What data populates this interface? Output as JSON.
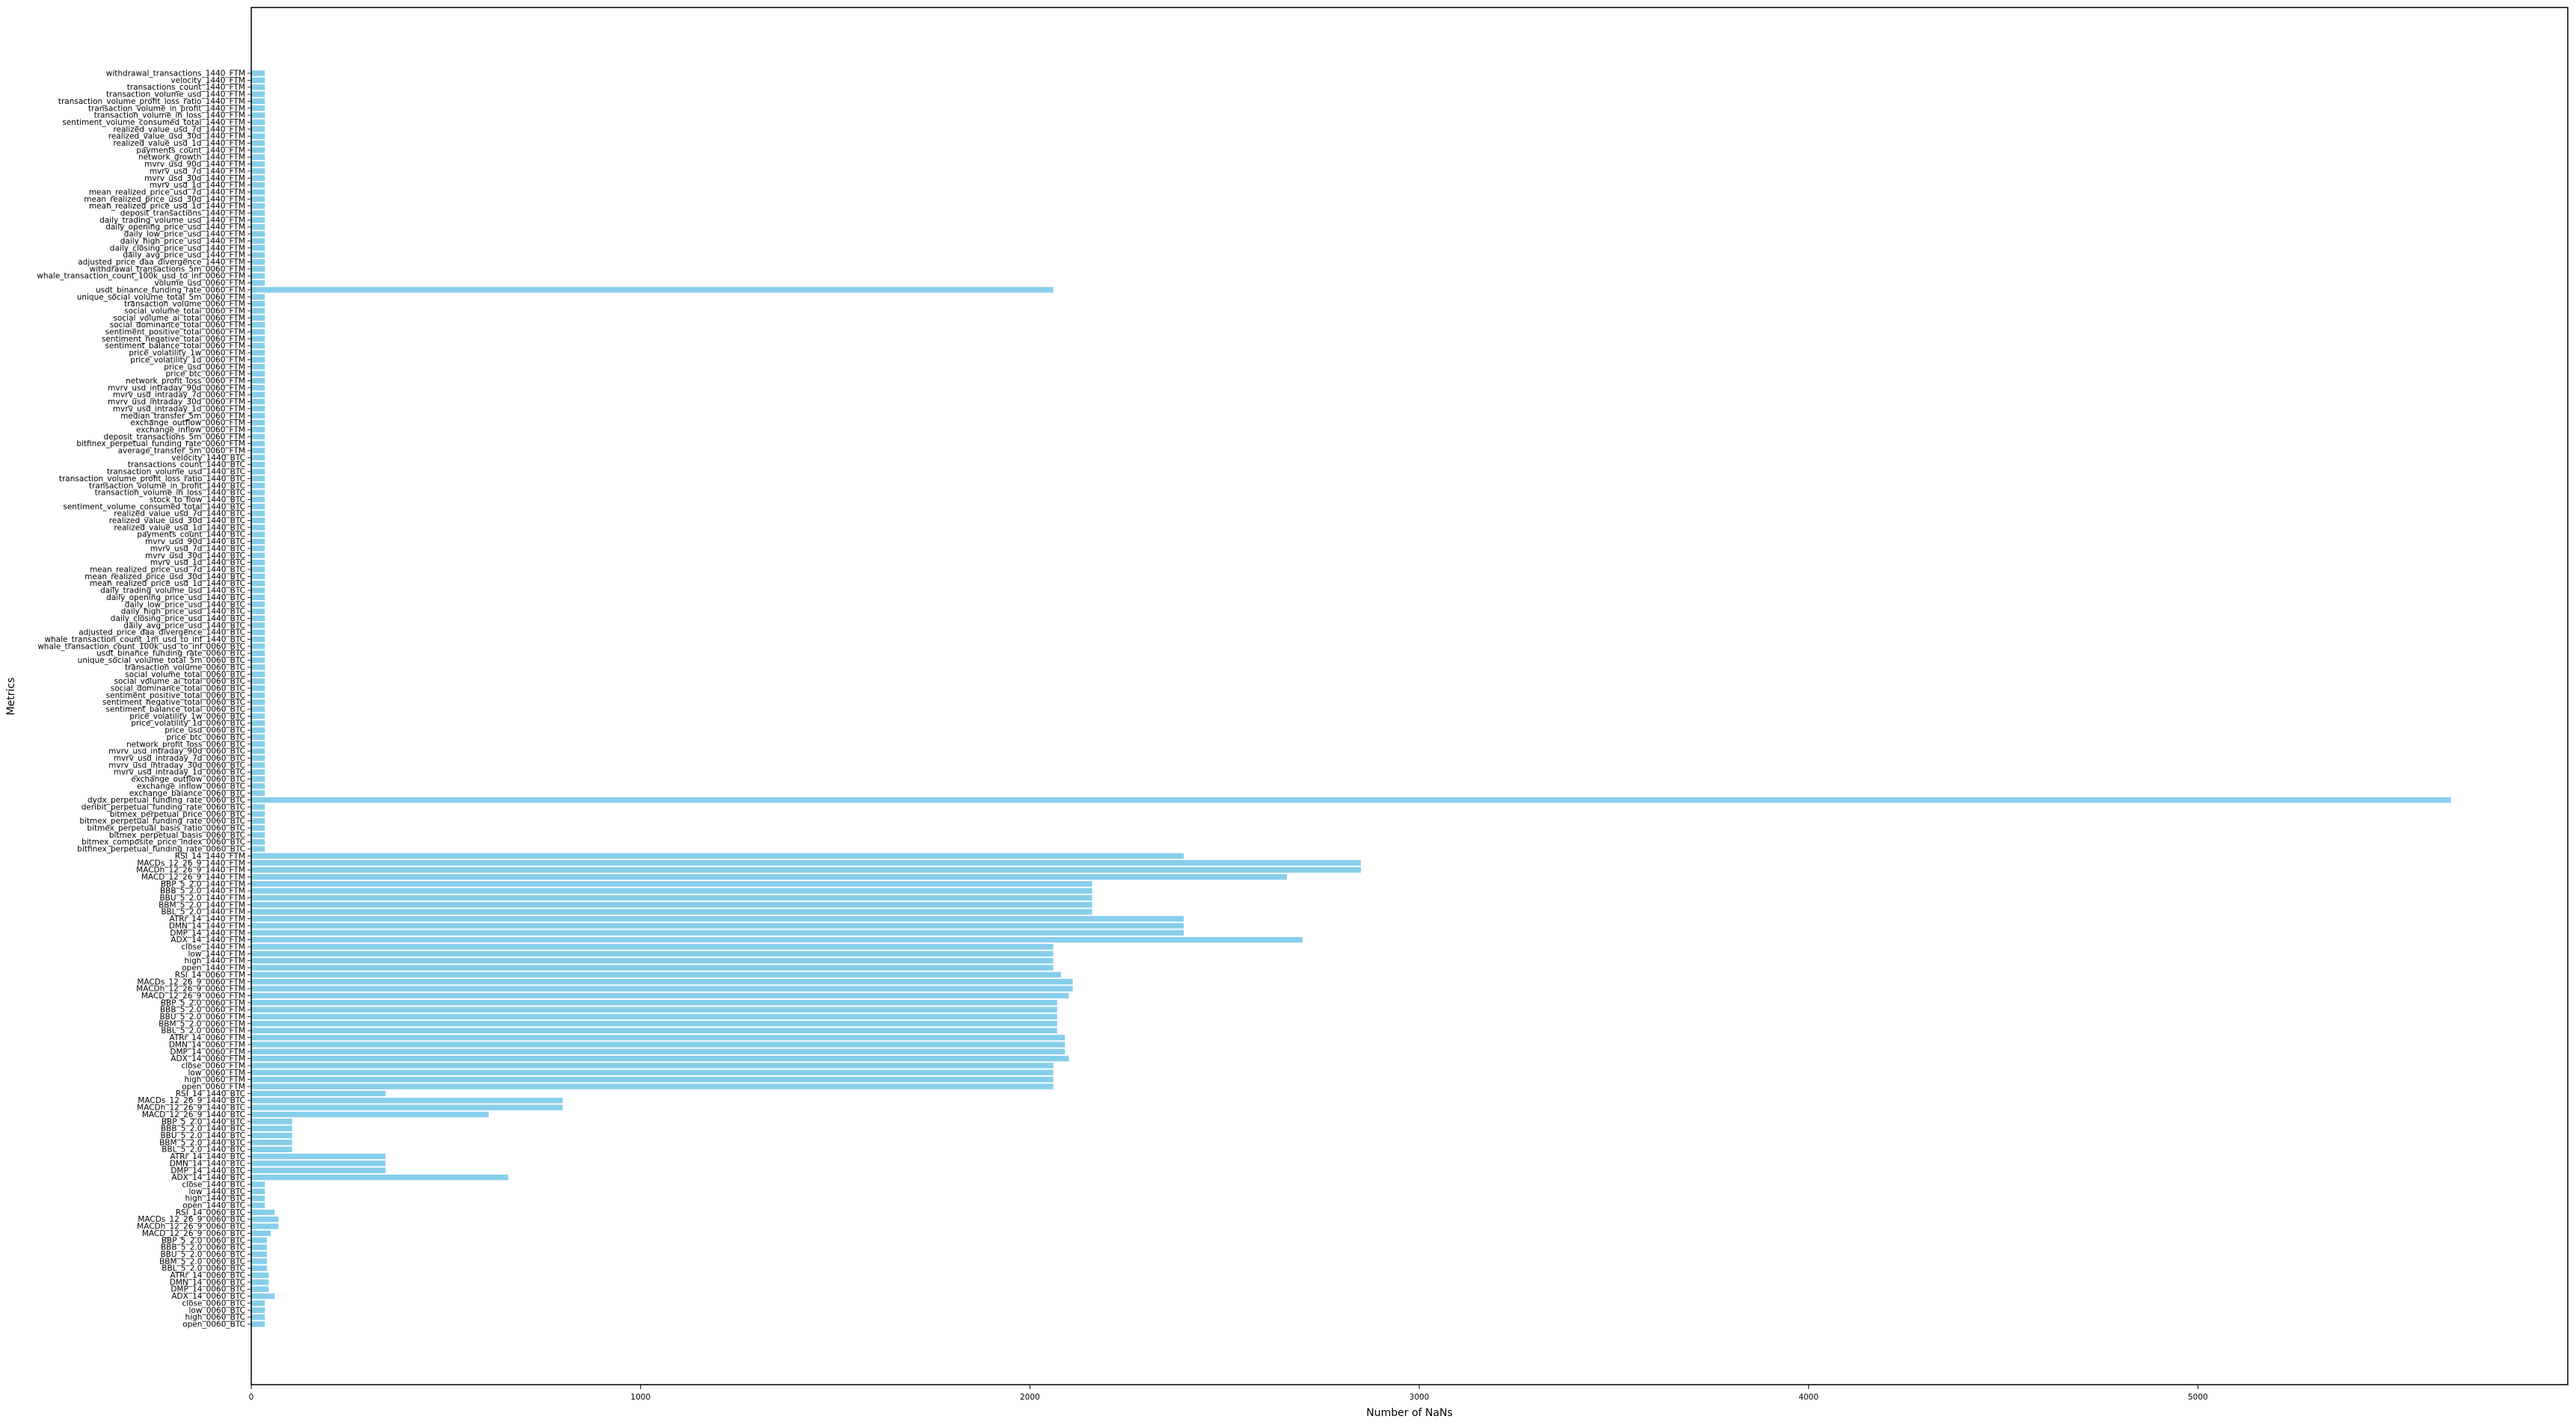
{
  "chart_data": {
    "type": "bar",
    "orientation": "horizontal",
    "xlabel": "Number of NaNs",
    "ylabel": "Metrics",
    "xlim": [
      0,
      5950
    ],
    "xticks": [
      0,
      1000,
      2000,
      3000,
      4000,
      5000
    ],
    "color": "#87CEEB",
    "grid": false,
    "categories": [
      "open_0060_BTC",
      "high_0060_BTC",
      "low_0060_BTC",
      "close_0060_BTC",
      "ADX_14_0060_BTC",
      "DMP_14_0060_BTC",
      "DMN_14_0060_BTC",
      "ATRr_14_0060_BTC",
      "BBL_5_2.0_0060_BTC",
      "BBM_5_2.0_0060_BTC",
      "BBU_5_2.0_0060_BTC",
      "BBB_5_2.0_0060_BTC",
      "BBP_5_2.0_0060_BTC",
      "MACD_12_26_9_0060_BTC",
      "MACDh_12_26_9_0060_BTC",
      "MACDs_12_26_9_0060_BTC",
      "RSI_14_0060_BTC",
      "open_1440_BTC",
      "high_1440_BTC",
      "low_1440_BTC",
      "close_1440_BTC",
      "ADX_14_1440_BTC",
      "DMP_14_1440_BTC",
      "DMN_14_1440_BTC",
      "ATRr_14_1440_BTC",
      "BBL_5_2.0_1440_BTC",
      "BBM_5_2.0_1440_BTC",
      "BBU_5_2.0_1440_BTC",
      "BBB_5_2.0_1440_BTC",
      "BBP_5_2.0_1440_BTC",
      "MACD_12_26_9_1440_BTC",
      "MACDh_12_26_9_1440_BTC",
      "MACDs_12_26_9_1440_BTC",
      "RSI_14_1440_BTC",
      "open_0060_FTM",
      "high_0060_FTM",
      "low_0060_FTM",
      "close_0060_FTM",
      "ADX_14_0060_FTM",
      "DMP_14_0060_FTM",
      "DMN_14_0060_FTM",
      "ATRr_14_0060_FTM",
      "BBL_5_2.0_0060_FTM",
      "BBM_5_2.0_0060_FTM",
      "BBU_5_2.0_0060_FTM",
      "BBB_5_2.0_0060_FTM",
      "BBP_5_2.0_0060_FTM",
      "MACD_12_26_9_0060_FTM",
      "MACDh_12_26_9_0060_FTM",
      "MACDs_12_26_9_0060_FTM",
      "RSI_14_0060_FTM",
      "open_1440_FTM",
      "high_1440_FTM",
      "low_1440_FTM",
      "close_1440_FTM",
      "ADX_14_1440_FTM",
      "DMP_14_1440_FTM",
      "DMN_14_1440_FTM",
      "ATRr_14_1440_FTM",
      "BBL_5_2.0_1440_FTM",
      "BBM_5_2.0_1440_FTM",
      "BBU_5_2.0_1440_FTM",
      "BBB_5_2.0_1440_FTM",
      "BBP_5_2.0_1440_FTM",
      "MACD_12_26_9_1440_FTM",
      "MACDh_12_26_9_1440_FTM",
      "MACDs_12_26_9_1440_FTM",
      "RSI_14_1440_FTM",
      "bitfinex_perpetual_funding_rate_0060_BTC",
      "bitmex_composite_price_index_0060_BTC",
      "bitmex_perpetual_basis_0060_BTC",
      "bitmex_perpetual_basis_ratio_0060_BTC",
      "bitmex_perpetual_funding_rate_0060_BTC",
      "bitmex_perpetual_price_0060_BTC",
      "deribit_perpetual_funding_rate_0060_BTC",
      "dydx_perpetual_funding_rate_0060_BTC",
      "exchange_balance_0060_BTC",
      "exchange_inflow_0060_BTC",
      "exchange_outflow_0060_BTC",
      "mvrv_usd_intraday_1d_0060_BTC",
      "mvrv_usd_intraday_30d_0060_BTC",
      "mvrv_usd_intraday_7d_0060_BTC",
      "mvrv_usd_intraday_90d_0060_BTC",
      "network_profit_loss_0060_BTC",
      "price_btc_0060_BTC",
      "price_usd_0060_BTC",
      "price_volatility_1d_0060_BTC",
      "price_volatility_1w_0060_BTC",
      "sentiment_balance_total_0060_BTC",
      "sentiment_negative_total_0060_BTC",
      "sentiment_positive_total_0060_BTC",
      "social_dominance_total_0060_BTC",
      "social_volume_ai_total_0060_BTC",
      "social_volume_total_0060_BTC",
      "transaction_volume_0060_BTC",
      "unique_social_volume_total_5m_0060_BTC",
      "usdt_binance_funding_rate_0060_BTC",
      "whale_transaction_count_100k_usd_to_inf_0060_BTC",
      "whale_transaction_count_1m_usd_to_inf_1440_BTC",
      "adjusted_price_daa_divergence_1440_BTC",
      "daily_avg_price_usd_1440_BTC",
      "daily_closing_price_usd_1440_BTC",
      "daily_high_price_usd_1440_BTC",
      "daily_low_price_usd_1440_BTC",
      "daily_opening_price_usd_1440_BTC",
      "daily_trading_volume_usd_1440_BTC",
      "mean_realized_price_usd_1d_1440_BTC",
      "mean_realized_price_usd_30d_1440_BTC",
      "mean_realized_price_usd_7d_1440_BTC",
      "mvrv_usd_1d_1440_BTC",
      "mvrv_usd_30d_1440_BTC",
      "mvrv_usd_7d_1440_BTC",
      "mvrv_usd_90d_1440_BTC",
      "payments_count_1440_BTC",
      "realized_value_usd_1d_1440_BTC",
      "realized_value_usd_30d_1440_BTC",
      "realized_value_usd_7d_1440_BTC",
      "sentiment_volume_consumed_total_1440_BTC",
      "stock_to_flow_1440_BTC",
      "transaction_volume_in_loss_1440_BTC",
      "transaction_volume_in_profit_1440_BTC",
      "transaction_volume_profit_loss_ratio_1440_BTC",
      "transaction_volume_usd_1440_BTC",
      "transactions_count_1440_BTC",
      "velocity_1440_BTC",
      "average_transfer_5m_0060_FTM",
      "bitfinex_perpetual_funding_rate_0060_FTM",
      "deposit_transactions_5m_0060_FTM",
      "exchange_inflow_0060_FTM",
      "exchange_outflow_0060_FTM",
      "median_transfer_5m_0060_FTM",
      "mvrv_usd_intraday_1d_0060_FTM",
      "mvrv_usd_intraday_30d_0060_FTM",
      "mvrv_usd_intraday_7d_0060_FTM",
      "mvrv_usd_intraday_90d_0060_FTM",
      "network_profit_loss_0060_FTM",
      "price_btc_0060_FTM",
      "price_usd_0060_FTM",
      "price_volatility_1d_0060_FTM",
      "price_volatility_1w_0060_FTM",
      "sentiment_balance_total_0060_FTM",
      "sentiment_negative_total_0060_FTM",
      "sentiment_positive_total_0060_FTM",
      "social_dominance_total_0060_FTM",
      "social_volume_ai_total_0060_FTM",
      "social_volume_total_0060_FTM",
      "transaction_volume_0060_FTM",
      "unique_social_volume_total_5m_0060_FTM",
      "usdt_binance_funding_rate_0060_FTM",
      "volume_usd_0060_FTM",
      "whale_transaction_count_100k_usd_to_inf_0060_FTM",
      "withdrawal_transactions_5m_0060_FTM",
      "adjusted_price_daa_divergence_1440_FTM",
      "daily_avg_price_usd_1440_FTM",
      "daily_closing_price_usd_1440_FTM",
      "daily_high_price_usd_1440_FTM",
      "daily_low_price_usd_1440_FTM",
      "daily_opening_price_usd_1440_FTM",
      "daily_trading_volume_usd_1440_FTM",
      "deposit_transactions_1440_FTM",
      "mean_realized_price_usd_1d_1440_FTM",
      "mean_realized_price_usd_30d_1440_FTM",
      "mean_realized_price_usd_7d_1440_FTM",
      "mvrv_usd_1d_1440_FTM",
      "mvrv_usd_30d_1440_FTM",
      "mvrv_usd_7d_1440_FTM",
      "mvrv_usd_90d_1440_FTM",
      "network_growth_1440_FTM",
      "payments_count_1440_FTM",
      "realized_value_usd_1d_1440_FTM",
      "realized_value_usd_30d_1440_FTM",
      "realized_value_usd_7d_1440_FTM",
      "sentiment_volume_consumed_total_1440_FTM",
      "transaction_volume_in_loss_1440_FTM",
      "transaction_volume_in_profit_1440_FTM",
      "transaction_volume_profit_loss_ratio_1440_FTM",
      "transaction_volume_usd_1440_FTM",
      "transactions_count_1440_FTM",
      "velocity_1440_FTM",
      "withdrawal_transactions_1440_FTM"
    ],
    "values": [
      35,
      35,
      35,
      35,
      60,
      45,
      45,
      45,
      40,
      40,
      40,
      40,
      40,
      50,
      70,
      70,
      60,
      35,
      35,
      35,
      35,
      660,
      345,
      345,
      345,
      105,
      105,
      105,
      105,
      105,
      610,
      800,
      800,
      345,
      2060,
      2060,
      2060,
      2060,
      2100,
      2090,
      2090,
      2090,
      2070,
      2070,
      2070,
      2070,
      2070,
      2100,
      2110,
      2110,
      2080,
      2060,
      2060,
      2060,
      2060,
      2700,
      2395,
      2395,
      2395,
      2160,
      2160,
      2160,
      2160,
      2160,
      2660,
      2850,
      2850,
      2395,
      35,
      35,
      35,
      35,
      35,
      35,
      35,
      5650,
      35,
      35,
      35,
      35,
      35,
      35,
      35,
      35,
      35,
      35,
      35,
      35,
      35,
      35,
      35,
      35,
      35,
      35,
      35,
      35,
      35,
      35,
      35,
      35,
      35,
      35,
      35,
      35,
      35,
      35,
      35,
      35,
      35,
      35,
      35,
      35,
      35,
      35,
      35,
      35,
      35,
      35,
      35,
      35,
      35,
      35,
      35,
      35,
      35,
      35,
      35,
      35,
      35,
      35,
      35,
      35,
      35,
      35,
      35,
      35,
      35,
      35,
      35,
      35,
      35,
      35,
      35,
      35,
      35,
      35,
      35,
      35,
      2060,
      35,
      35,
      35,
      35,
      35,
      35,
      35,
      35,
      35,
      35,
      35,
      35,
      35,
      35,
      35,
      35,
      35,
      35,
      35,
      35,
      35,
      35,
      35,
      35,
      35,
      35,
      35,
      35,
      35,
      35,
      35
    ]
  }
}
